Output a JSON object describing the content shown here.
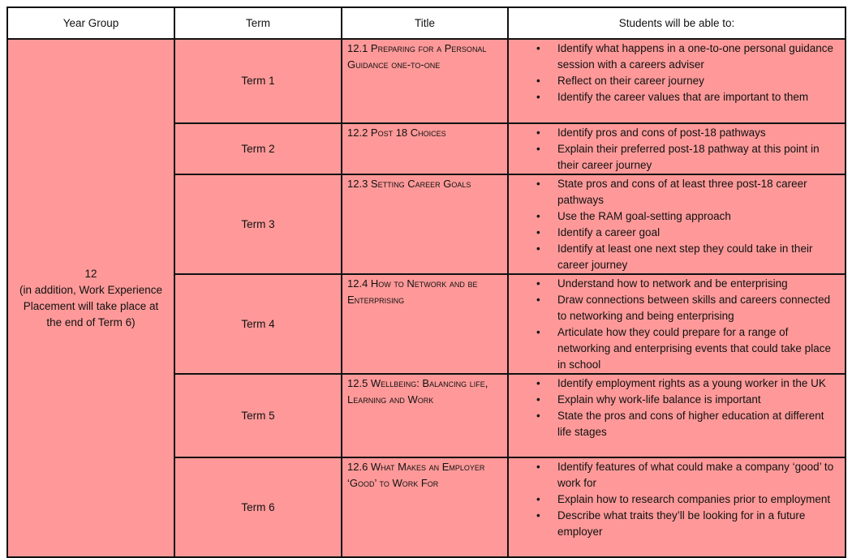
{
  "headers": [
    "Year Group",
    "Term",
    "Title",
    "Students will be able to:"
  ],
  "year_group": {
    "value": "12",
    "note": "(in addition, Work Experience Placement will take place at the end of Term 6)"
  },
  "rows": [
    {
      "term": "Term 1",
      "title": "12.1 Preparing for a Personal Guidance one-to-one",
      "outcomes": [
        "Identify what happens in a one-to-one personal guidance session with a careers adviser",
        "Reflect on their career journey",
        "Identify the career values that are important to them"
      ]
    },
    {
      "term": "Term 2",
      "title": "12.2 Post 18 Choices",
      "outcomes": [
        "Identify pros and cons of post-18 pathways",
        "Explain their preferred post-18 pathway at this point in their career journey"
      ]
    },
    {
      "term": "Term 3",
      "title": "12.3 Setting Career Goals",
      "outcomes": [
        "State pros and cons of at least three post-18 career pathways",
        "Use the RAM goal-setting approach",
        "Identify a career goal",
        "Identify at least one next step they could take in their career journey"
      ]
    },
    {
      "term": "Term 4",
      "title": "12.4 How to Network and be Enterprising",
      "outcomes": [
        "Understand how to network and be enterprising",
        "Draw connections between skills and careers connected to networking and being enterprising",
        "Articulate how they could prepare for a range of networking and enterprising events that could take place in school"
      ]
    },
    {
      "term": "Term 5",
      "title": "12.5 Wellbeing: Balancing life, Learning and Work",
      "outcomes": [
        "Identify employment rights as a young worker in the UK",
        "Explain why work-life balance is important",
        "State the pros and cons of higher education at different life stages"
      ]
    },
    {
      "term": "Term 6",
      "title": "12.6 What Makes an Employer ‘Good’ to Work For",
      "outcomes": [
        "Identify features of what could make a company ‘good’ to work for",
        "Explain how to research companies prior to employment",
        "Describe what traits they’ll be looking for in a future employer"
      ]
    }
  ],
  "colors": {
    "cell_fill": "#ff9999",
    "header_fill": "#ffffff",
    "border": "#111111"
  }
}
